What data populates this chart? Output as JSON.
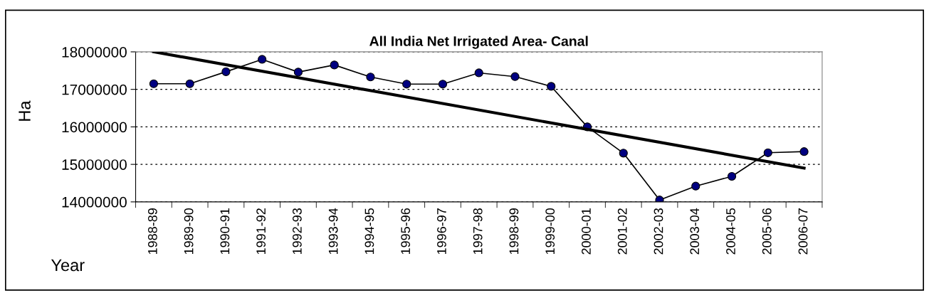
{
  "chart_data": {
    "type": "line",
    "title": "All India Net Irrigated Area- Canal",
    "xlabel": "Year",
    "ylabel": "Ha",
    "categories": [
      "1988-89",
      "1989-90",
      "1990-91",
      "1991-92",
      "1992-93",
      "1993-94",
      "1994-95",
      "1995-96",
      "1996-97",
      "1997-98",
      "1998-99",
      "1999-00",
      "2000-01",
      "2001-02",
      "2002-03",
      "2003-04",
      "2004-05",
      "2005-06",
      "2006-07"
    ],
    "series": [
      {
        "color": "#000080",
        "marker": "circle",
        "values": [
          17150000,
          17150000,
          17470000,
          17800000,
          17460000,
          17650000,
          17330000,
          17140000,
          17140000,
          17440000,
          17340000,
          17080000,
          16000000,
          15300000,
          14050000,
          14420000,
          14680000,
          15310000,
          15340000
        ]
      },
      {
        "type": "line",
        "color": "#000000",
        "marker": "none",
        "values": [
          18000000,
          null,
          null,
          null,
          null,
          null,
          null,
          null,
          null,
          null,
          null,
          null,
          null,
          null,
          null,
          null,
          null,
          null,
          14900000
        ]
      }
    ],
    "ylim": [
      14000000,
      18000000
    ],
    "yticks": [
      14000000,
      15000000,
      16000000,
      17000000,
      18000000
    ],
    "grid": "y"
  }
}
